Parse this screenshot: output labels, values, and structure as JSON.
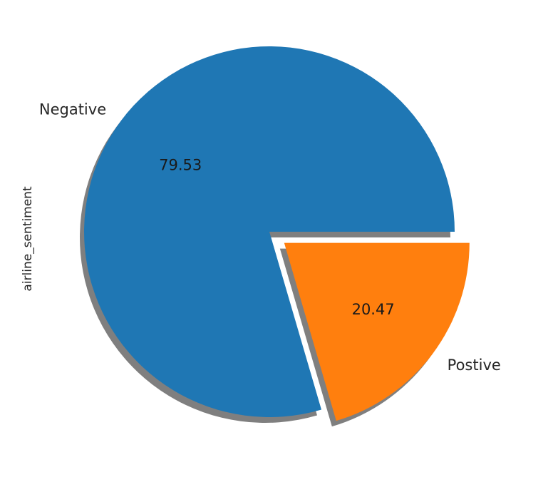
{
  "chart_data": {
    "type": "pie",
    "ylabel": "airline_sentiment",
    "slices": [
      {
        "label": "Negative",
        "value": 79.53,
        "value_label": "79.53",
        "color": "#1f77b4",
        "explode": 0
      },
      {
        "label": "Postive",
        "value": 20.47,
        "value_label": "20.47",
        "color": "#ff7f0e",
        "explode": 0.1
      }
    ],
    "shadow": true,
    "start_angle_deg": 0,
    "direction": "counterclockwise"
  }
}
